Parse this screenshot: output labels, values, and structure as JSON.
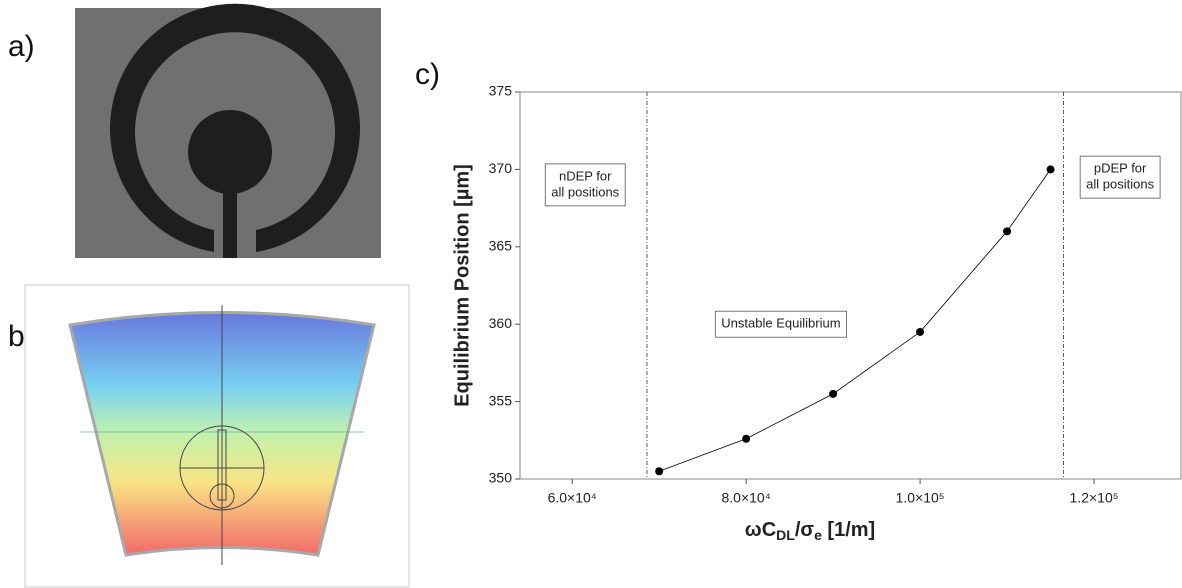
{
  "panels": {
    "labels": [
      "a)",
      "b)",
      "c)"
    ]
  },
  "chart_data": {
    "type": "line",
    "x": [
      70000,
      80000,
      90000,
      100000,
      110000,
      115000
    ],
    "series": [
      {
        "name": "Equilibrium Position",
        "color": "#000000",
        "values": [
          350.5,
          352.6,
          355.5,
          359.5,
          366,
          370
        ]
      }
    ],
    "xlim": [
      54000,
      130000
    ],
    "xticks": [
      {
        "value": 60000,
        "label": "6.0×10⁴"
      },
      {
        "value": 80000,
        "label": "8.0×10⁴"
      },
      {
        "value": 100000,
        "label": "1.0×10⁵"
      },
      {
        "value": 120000,
        "label": "1.2×10⁵"
      }
    ],
    "ylim": [
      350,
      375
    ],
    "yticks": [
      350,
      355,
      360,
      365,
      370,
      375
    ],
    "y_label": "Equilibrium Position [µm]",
    "x_label": [
      {
        "text": "ωC"
      },
      {
        "text": "DL",
        "sub": true
      },
      {
        "text": "/σ"
      },
      {
        "text": "e",
        "sub": true
      },
      {
        "text": " [1/m]"
      }
    ],
    "vlines": [
      68600,
      116500
    ],
    "annotations": [
      {
        "lines": [
          "nDEP for",
          "all positions"
        ],
        "x": 61500,
        "y": 369
      },
      {
        "lines": [
          "Unstable Equilibrium"
        ],
        "x": 84000,
        "y": 360
      },
      {
        "lines": [
          "pDEP for",
          "all positions"
        ],
        "x": 123000,
        "y": 369.5
      }
    ]
  }
}
